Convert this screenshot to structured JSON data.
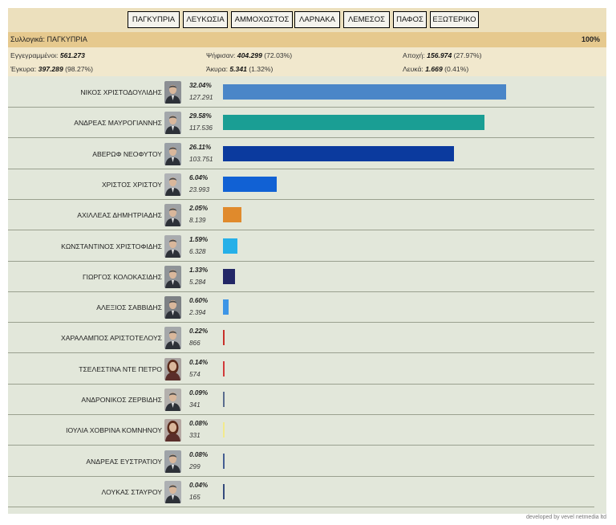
{
  "tabs": [
    "ΠΑΓΚΥΠΡΙΑ",
    "ΛΕΥΚΩΣΙΑ",
    "ΑΜΜΟΧΩΣΤΟΣ",
    "ΛΑΡΝΑΚΑ",
    "ΛΕΜΕΣΟΣ",
    "ΠΑΦΟΣ",
    "ΕΞΩΤΕΡΙΚΟ"
  ],
  "summary": {
    "title": "Συλλογικά: ΠΑΓΚΥΠΡΙΑ",
    "counted": "100%"
  },
  "stats": {
    "registered_label": "Εγγεγραμμένοι:",
    "registered": "561.273",
    "voted_label": "Ψήφισαν:",
    "voted": "404.299",
    "voted_pct": "(72.03%)",
    "abstention_label": "Αποχή:",
    "abstention": "156.974",
    "abstention_pct": "(27.97%)",
    "valid_label": "Έγκυρα:",
    "valid": "397.289",
    "valid_pct": "(98.27%)",
    "invalid_label": "Άκυρα:",
    "invalid": "5.341",
    "invalid_pct": "(1.32%)",
    "blank_label": "Λευκά:",
    "blank": "1.669",
    "blank_pct": "(0.41%)"
  },
  "chart_data": {
    "type": "bar",
    "orientation": "horizontal",
    "categories": [
      "ΝΙΚΟΣ ΧΡΙΣΤΟΔΟΥΛΙΔΗΣ",
      "ΑΝΔΡΕΑΣ ΜΑΥΡΟΓΙΑΝΝΗΣ",
      "ΑΒΕΡΩΦ ΝΕΟΦΥΤΟΥ",
      "ΧΡΙΣΤΟΣ ΧΡΙΣΤΟΥ",
      "ΑΧΙΛΛΕΑΣ ΔΗΜΗΤΡΙΑΔΗΣ",
      "ΚΩΝΣΤΑΝΤΙΝΟΣ ΧΡΙΣΤΟΦΙΔΗΣ",
      "ΓΙΩΡΓΟΣ ΚΟΛΟΚΑΣΙΔΗΣ",
      "ΑΛΕΞΙΟΣ ΣΑΒΒΙΔΗΣ",
      "ΧΑΡΑΛΑΜΠΟΣ ΑΡΙΣΤΟΤΕΛΟΥΣ",
      "ΤΣΕΛΕΣΤΙΝΑ ΝΤΕ ΠΕΤΡΟ",
      "ΑΝΔΡΟΝΙΚΟΣ ΖΕΡΒΙΔΗΣ",
      "ΙΟΥΛΙΑ ΧΟΒΡΙΝΑ ΚΟΜΝΗΝΟΥ",
      "ΑΝΔΡΕΑΣ ΕΥΣΤΡΑΤΙΟΥ",
      "ΛΟΥΚΑΣ ΣΤΑΥΡΟΥ"
    ],
    "values": [
      32.04,
      29.58,
      26.11,
      6.04,
      2.05,
      1.59,
      1.33,
      0.6,
      0.22,
      0.14,
      0.09,
      0.08,
      0.08,
      0.04
    ],
    "pct_labels": [
      "32.04%",
      "29.58%",
      "26.11%",
      "6.04%",
      "2.05%",
      "1.59%",
      "1.33%",
      "0.60%",
      "0.22%",
      "0.14%",
      "0.09%",
      "0.08%",
      "0.08%",
      "0.04%"
    ],
    "vote_labels": [
      "127.291",
      "117.536",
      "103.751",
      "23.993",
      "8.139",
      "6.328",
      "5.284",
      "2.394",
      "866",
      "574",
      "341",
      "331",
      "299",
      "165"
    ],
    "colors": [
      "#4a86c8",
      "#1a9e94",
      "#0b3a9e",
      "#1161d4",
      "#e08a2c",
      "#26b0e8",
      "#232766",
      "#3d95e6",
      "#c8302a",
      "#d23a3a",
      "#5a6c8e",
      "#f2ea8c",
      "#445e92",
      "#344a7c"
    ],
    "xlim": [
      0,
      32.04
    ],
    "grid": false,
    "legend": "none"
  },
  "credit": "developed by vevel netmedia ltd"
}
